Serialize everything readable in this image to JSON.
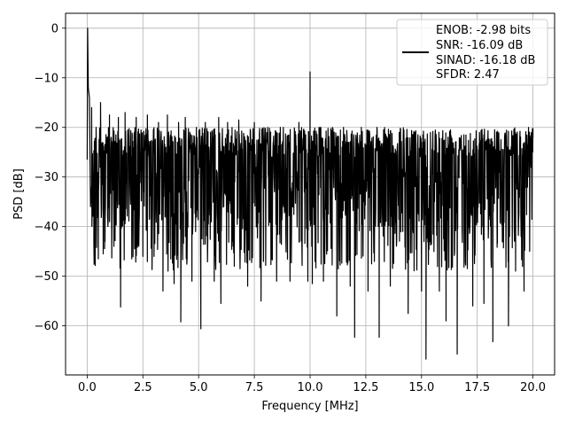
{
  "chart_data": {
    "type": "line",
    "title": "",
    "xlabel": "Frequency [MHz]",
    "ylabel": "PSD [dB]",
    "xlim": [
      -0.97,
      20.97
    ],
    "ylim": [
      -69.9,
      3.0
    ],
    "xticks": [
      0.0,
      2.5,
      5.0,
      7.5,
      10.0,
      12.5,
      15.0,
      17.5,
      20.0
    ],
    "xtick_labels": [
      "0.0",
      "2.5",
      "5.0",
      "7.5",
      "10.0",
      "12.5",
      "15.0",
      "17.5",
      "20.0"
    ],
    "yticks": [
      0,
      -10,
      -20,
      -30,
      -40,
      -50,
      -60
    ],
    "ytick_labels": [
      "0",
      "−10",
      "−20",
      "−30",
      "−40",
      "−50",
      "−60"
    ],
    "grid": true,
    "legend_placement": "upper-right",
    "series": [
      {
        "name": "ENOB: -2.98 bits\nSNR: -16.09 dB\nSINAD: -16.18 dB\nSFDR: 2.47",
        "legend_lines": [
          "ENOB: -2.98 bits",
          "SNR: -16.09 dB",
          "SINAD: -16.18 dB",
          "SFDR: 2.47"
        ],
        "color": "#000000",
        "description": "dense noisy PSD trace spanning 0 to 20 MHz",
        "points": [
          [
            0.0,
            -26.5
          ],
          [
            0.02,
            0.0
          ],
          [
            0.05,
            -12.0
          ],
          [
            0.1,
            -14.0
          ],
          [
            0.15,
            -36.0
          ],
          [
            0.2,
            -16.0
          ],
          [
            0.3,
            -43.0
          ],
          [
            0.4,
            -20.0
          ],
          [
            0.5,
            -46.5
          ],
          [
            0.6,
            -15.0
          ],
          [
            0.8,
            -43.0
          ],
          [
            1.0,
            -17.5
          ],
          [
            1.2,
            -44.0
          ],
          [
            1.4,
            -18.0
          ],
          [
            1.5,
            -56.2
          ],
          [
            1.7,
            -17.0
          ],
          [
            2.0,
            -46.5
          ],
          [
            2.2,
            -18.0
          ],
          [
            2.5,
            -46.0
          ],
          [
            2.7,
            -17.5
          ],
          [
            3.0,
            -46.0
          ],
          [
            3.2,
            -19.0
          ],
          [
            3.4,
            -53.0
          ],
          [
            3.6,
            -17.5
          ],
          [
            3.9,
            -51.5
          ],
          [
            4.1,
            -19.0
          ],
          [
            4.2,
            -59.2
          ],
          [
            4.4,
            -18.0
          ],
          [
            4.7,
            -51.0
          ],
          [
            4.9,
            -20.0
          ],
          [
            5.1,
            -60.6
          ],
          [
            5.3,
            -19.0
          ],
          [
            5.7,
            -51.0
          ],
          [
            5.9,
            -18.0
          ],
          [
            6.0,
            -55.5
          ],
          [
            6.3,
            -19.0
          ],
          [
            6.6,
            -48.0
          ],
          [
            6.8,
            -18.5
          ],
          [
            7.2,
            -52.0
          ],
          [
            7.5,
            -19.0
          ],
          [
            7.8,
            -55.0
          ],
          [
            8.1,
            -20.0
          ],
          [
            8.5,
            -51.0
          ],
          [
            8.8,
            -20.0
          ],
          [
            9.1,
            -51.0
          ],
          [
            9.5,
            -19.0
          ],
          [
            9.9,
            -51.0
          ],
          [
            10.0,
            -8.8
          ],
          [
            10.1,
            -51.5
          ],
          [
            10.4,
            -20.0
          ],
          [
            10.6,
            -51.0
          ],
          [
            11.0,
            -20.0
          ],
          [
            11.2,
            -58.0
          ],
          [
            11.5,
            -20.0
          ],
          [
            11.8,
            -52.0
          ],
          [
            12.0,
            -62.3
          ],
          [
            12.3,
            -20.0
          ],
          [
            12.6,
            -53.0
          ],
          [
            13.0,
            -20.0
          ],
          [
            13.1,
            -62.3
          ],
          [
            13.3,
            -20.5
          ],
          [
            13.6,
            -52.0
          ],
          [
            14.0,
            -21.0
          ],
          [
            14.4,
            -57.5
          ],
          [
            14.7,
            -21.0
          ],
          [
            15.0,
            -53.0
          ],
          [
            15.2,
            -66.7
          ],
          [
            15.4,
            -21.0
          ],
          [
            15.8,
            -53.0
          ],
          [
            16.1,
            -59.0
          ],
          [
            16.3,
            -20.5
          ],
          [
            16.6,
            -65.7
          ],
          [
            16.9,
            -21.5
          ],
          [
            17.3,
            -56.0
          ],
          [
            17.6,
            -21.0
          ],
          [
            17.8,
            -55.5
          ],
          [
            18.2,
            -63.2
          ],
          [
            18.4,
            -21.0
          ],
          [
            18.9,
            -60.0
          ],
          [
            19.2,
            -21.0
          ],
          [
            19.6,
            -53.0
          ],
          [
            19.8,
            -20.0
          ],
          [
            20.0,
            -22.0
          ]
        ]
      }
    ]
  }
}
